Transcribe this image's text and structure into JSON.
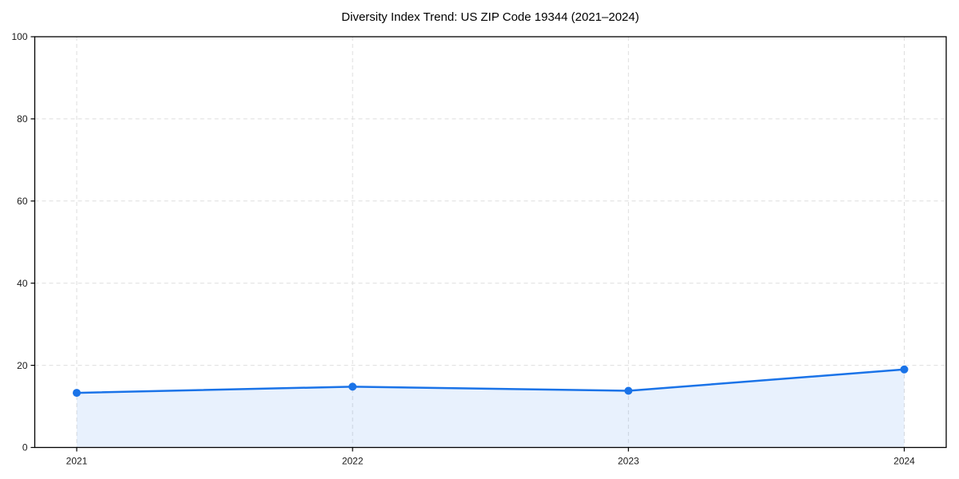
{
  "chart_data": {
    "type": "line",
    "title": "Diversity Index Trend: US ZIP Code 19344 (2021–2024)",
    "categories": [
      "2021",
      "2022",
      "2023",
      "2024"
    ],
    "series": [
      {
        "name": "Diversity Index",
        "values": [
          13.3,
          14.8,
          13.8,
          19.0
        ]
      }
    ],
    "xlabel": "",
    "ylabel": "",
    "ylim": [
      0,
      100
    ],
    "yticks": [
      0,
      20,
      40,
      60,
      80,
      100
    ],
    "grid": "dashed-both-axes",
    "legend_position": "none",
    "line_color": "#1a73e8",
    "fill_color": "rgba(26,115,232,0.10)",
    "gridline_color": "#dedede",
    "axis_color": "#000000",
    "marker": "circle"
  }
}
